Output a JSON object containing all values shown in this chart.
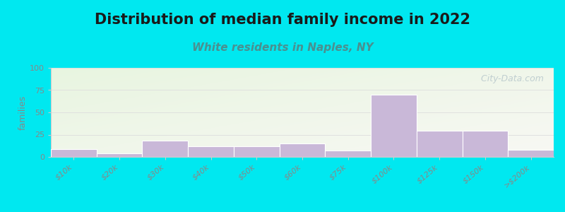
{
  "title": "Distribution of median family income in 2022",
  "subtitle": "White residents in Naples, NY",
  "ylabel": "families",
  "categories": [
    "$10k",
    "$20k",
    "$30k",
    "$40k",
    "$50k",
    "$60k",
    "$75k",
    "$100k",
    "$125k",
    "$150k",
    ">$200k"
  ],
  "values": [
    9,
    4,
    18,
    12,
    12,
    15,
    7,
    70,
    29,
    29,
    8
  ],
  "bar_color": "#c9b8d8",
  "bar_edgecolor": "#ffffff",
  "ylim": [
    0,
    100
  ],
  "yticks": [
    0,
    25,
    50,
    75,
    100
  ],
  "bg_outer": "#00e8f0",
  "bg_plot_topleft": "#e8f5e0",
  "bg_plot_bottomright": "#f8f8f4",
  "title_fontsize": 15,
  "subtitle_fontsize": 11,
  "subtitle_color": "#4a9090",
  "watermark": "  City-Data.com",
  "watermark_color": "#b8c8cc",
  "tick_label_fontsize": 8,
  "tick_label_color": "#888888",
  "ylabel_fontsize": 9,
  "ylabel_color": "#888888"
}
